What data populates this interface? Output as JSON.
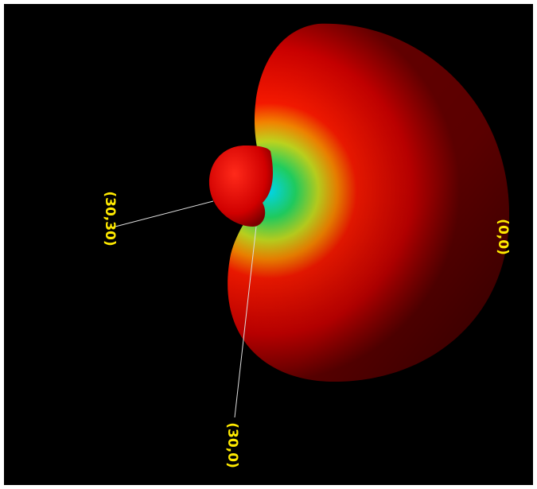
{
  "labels": {
    "left": "(30,30)",
    "bottom": "(30,0)",
    "right": "(0,0)"
  }
}
